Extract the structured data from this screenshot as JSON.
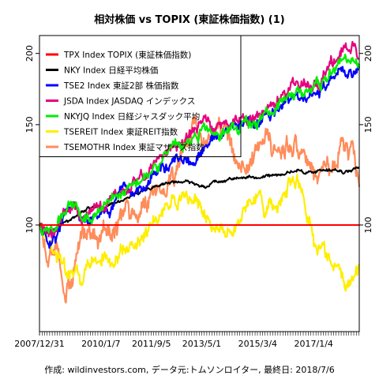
{
  "chart_data": {
    "type": "line",
    "title": "相対株価 vs TOPIX (東証株価指数) (1)",
    "caption": "作成: wildinvestors.com, データ元:トムソンロイター, 最終日: 2018/7/6",
    "xlabel": "",
    "ylabel": "",
    "x_tick_labels": [
      "2007/12/31",
      "2010/1/7",
      "2011/9/5",
      "2013/5/1",
      "2015/3/4",
      "2017/1/4"
    ],
    "x_tick_dates": [
      "2007-12-31",
      "2010-01-07",
      "2011-09-05",
      "2013-05-01",
      "2015-03-04",
      "2017-01-04"
    ],
    "x_range": [
      "2007-12-31",
      "2018-07-06"
    ],
    "y_scale": "log",
    "ylim": [
      65,
      215
    ],
    "y_ticks": [
      100,
      150,
      200
    ],
    "y_tick_labels": [
      "100",
      "150",
      "200"
    ],
    "grid": false,
    "legend_position": "top-left",
    "series": [
      {
        "name": "TPX Index TOPIX (東証株価指数)",
        "color": "#ff0000",
        "points": [
          [
            "2007-12-31",
            100
          ],
          [
            "2018-07-06",
            100
          ]
        ]
      },
      {
        "name": "NKY Index 日経平均株価",
        "color": "#000000",
        "points": [
          [
            "2007-12-31",
            100
          ],
          [
            "2008-04-01",
            97
          ],
          [
            "2008-08-01",
            99
          ],
          [
            "2008-11-01",
            101
          ],
          [
            "2009-03-01",
            104
          ],
          [
            "2009-06-01",
            106
          ],
          [
            "2009-10-01",
            108
          ],
          [
            "2010-02-01",
            107
          ],
          [
            "2010-06-01",
            109
          ],
          [
            "2010-10-01",
            111
          ],
          [
            "2011-02-01",
            113
          ],
          [
            "2011-06-01",
            114
          ],
          [
            "2011-10-01",
            116
          ],
          [
            "2012-02-01",
            118
          ],
          [
            "2012-06-01",
            119
          ],
          [
            "2012-10-01",
            119
          ],
          [
            "2013-02-01",
            118
          ],
          [
            "2013-06-01",
            117
          ],
          [
            "2013-10-01",
            119
          ],
          [
            "2014-02-01",
            120
          ],
          [
            "2014-06-01",
            121
          ],
          [
            "2014-10-01",
            121
          ],
          [
            "2015-02-01",
            121
          ],
          [
            "2015-06-01",
            122
          ],
          [
            "2015-10-01",
            122
          ],
          [
            "2016-02-01",
            123
          ],
          [
            "2016-06-01",
            125
          ],
          [
            "2016-10-01",
            124
          ],
          [
            "2017-02-01",
            124
          ],
          [
            "2017-06-01",
            124
          ],
          [
            "2017-10-01",
            125
          ],
          [
            "2018-01-01",
            124
          ],
          [
            "2018-04-01",
            125
          ],
          [
            "2018-07-06",
            127
          ]
        ]
      },
      {
        "name": "TSE2 Index 東証2部 株価指数",
        "color": "#0000ff",
        "points": [
          [
            "2007-12-31",
            100
          ],
          [
            "2008-04-01",
            94
          ],
          [
            "2008-08-01",
            97
          ],
          [
            "2008-11-01",
            104
          ],
          [
            "2009-03-01",
            108
          ],
          [
            "2009-06-01",
            100
          ],
          [
            "2009-10-01",
            102
          ],
          [
            "2010-02-01",
            104
          ],
          [
            "2010-06-01",
            108
          ],
          [
            "2010-10-01",
            112
          ],
          [
            "2011-02-01",
            113
          ],
          [
            "2011-06-01",
            118
          ],
          [
            "2011-10-01",
            124
          ],
          [
            "2012-02-01",
            126
          ],
          [
            "2012-06-01",
            128
          ],
          [
            "2012-10-01",
            130
          ],
          [
            "2013-02-01",
            127
          ],
          [
            "2013-06-01",
            135
          ],
          [
            "2013-10-01",
            141
          ],
          [
            "2014-02-01",
            144
          ],
          [
            "2014-06-01",
            149
          ],
          [
            "2014-10-01",
            151
          ],
          [
            "2015-02-01",
            149
          ],
          [
            "2015-06-01",
            153
          ],
          [
            "2015-10-01",
            158
          ],
          [
            "2016-02-01",
            163
          ],
          [
            "2016-06-01",
            168
          ],
          [
            "2016-10-01",
            166
          ],
          [
            "2017-02-01",
            170
          ],
          [
            "2017-06-01",
            175
          ],
          [
            "2017-10-01",
            181
          ],
          [
            "2018-01-01",
            186
          ],
          [
            "2018-04-01",
            184
          ],
          [
            "2018-07-06",
            190
          ]
        ]
      },
      {
        "name": "JSDA Index JASDAQ インデックス",
        "color": "#e6007e",
        "points": [
          [
            "2007-12-31",
            100
          ],
          [
            "2008-04-01",
            96
          ],
          [
            "2008-08-01",
            100
          ],
          [
            "2008-11-01",
            106
          ],
          [
            "2009-03-01",
            111
          ],
          [
            "2009-06-01",
            103
          ],
          [
            "2009-10-01",
            105
          ],
          [
            "2010-02-01",
            107
          ],
          [
            "2010-06-01",
            112
          ],
          [
            "2010-10-01",
            115
          ],
          [
            "2011-02-01",
            118
          ],
          [
            "2011-06-01",
            121
          ],
          [
            "2011-10-01",
            129
          ],
          [
            "2012-02-01",
            132
          ],
          [
            "2012-06-01",
            137
          ],
          [
            "2012-10-01",
            140
          ],
          [
            "2013-02-01",
            146
          ],
          [
            "2013-06-01",
            153
          ],
          [
            "2013-10-01",
            150
          ],
          [
            "2014-02-01",
            148
          ],
          [
            "2014-06-01",
            152
          ],
          [
            "2014-10-01",
            155
          ],
          [
            "2015-02-01",
            154
          ],
          [
            "2015-06-01",
            158
          ],
          [
            "2015-10-01",
            164
          ],
          [
            "2016-02-01",
            170
          ],
          [
            "2016-06-01",
            176
          ],
          [
            "2016-10-01",
            174
          ],
          [
            "2017-02-01",
            179
          ],
          [
            "2017-06-01",
            186
          ],
          [
            "2017-10-01",
            196
          ],
          [
            "2018-01-01",
            207
          ],
          [
            "2018-04-01",
            202
          ],
          [
            "2018-07-06",
            196
          ]
        ]
      },
      {
        "name": "NKYJQ Index 日経ジャスダック平均",
        "color": "#00ee00",
        "points": [
          [
            "2007-12-31",
            100
          ],
          [
            "2008-04-01",
            97
          ],
          [
            "2008-08-01",
            100
          ],
          [
            "2008-11-01",
            106
          ],
          [
            "2009-03-01",
            110
          ],
          [
            "2009-06-01",
            103
          ],
          [
            "2009-10-01",
            105
          ],
          [
            "2010-02-01",
            107
          ],
          [
            "2010-06-01",
            112
          ],
          [
            "2010-10-01",
            116
          ],
          [
            "2011-02-01",
            119
          ],
          [
            "2011-06-01",
            122
          ],
          [
            "2011-10-01",
            128
          ],
          [
            "2012-02-01",
            131
          ],
          [
            "2012-06-01",
            135
          ],
          [
            "2012-10-01",
            136
          ],
          [
            "2013-02-01",
            143
          ],
          [
            "2013-06-01",
            147
          ],
          [
            "2013-10-01",
            145
          ],
          [
            "2014-02-01",
            145
          ],
          [
            "2014-06-01",
            149
          ],
          [
            "2014-10-01",
            152
          ],
          [
            "2015-02-01",
            151
          ],
          [
            "2015-06-01",
            155
          ],
          [
            "2015-10-01",
            160
          ],
          [
            "2016-02-01",
            166
          ],
          [
            "2016-06-01",
            171
          ],
          [
            "2016-10-01",
            170
          ],
          [
            "2017-02-01",
            175
          ],
          [
            "2017-06-01",
            181
          ],
          [
            "2017-10-01",
            188
          ],
          [
            "2018-01-01",
            195
          ],
          [
            "2018-04-01",
            191
          ],
          [
            "2018-07-06",
            192
          ]
        ]
      },
      {
        "name": "TSEREIT Index 東証REIT指数",
        "color": "#ffee00",
        "points": [
          [
            "2007-12-31",
            100
          ],
          [
            "2008-04-01",
            93
          ],
          [
            "2008-08-01",
            88
          ],
          [
            "2008-11-01",
            82
          ],
          [
            "2009-03-01",
            84
          ],
          [
            "2009-06-01",
            80
          ],
          [
            "2009-10-01",
            86
          ],
          [
            "2010-02-01",
            90
          ],
          [
            "2010-06-01",
            85
          ],
          [
            "2010-10-01",
            88
          ],
          [
            "2011-02-01",
            93
          ],
          [
            "2011-06-01",
            96
          ],
          [
            "2011-10-01",
            100
          ],
          [
            "2012-02-01",
            105
          ],
          [
            "2012-06-01",
            108
          ],
          [
            "2012-10-01",
            111
          ],
          [
            "2013-02-01",
            112
          ],
          [
            "2013-06-01",
            105
          ],
          [
            "2013-10-01",
            98
          ],
          [
            "2014-02-01",
            97
          ],
          [
            "2014-06-01",
            100
          ],
          [
            "2014-10-01",
            105
          ],
          [
            "2015-02-01",
            112
          ],
          [
            "2015-06-01",
            107
          ],
          [
            "2015-10-01",
            108
          ],
          [
            "2016-02-01",
            115
          ],
          [
            "2016-06-01",
            122
          ],
          [
            "2016-10-01",
            108
          ],
          [
            "2017-02-01",
            92
          ],
          [
            "2017-06-01",
            88
          ],
          [
            "2017-10-01",
            84
          ],
          [
            "2018-01-01",
            78
          ],
          [
            "2018-04-01",
            80
          ],
          [
            "2018-07-06",
            86
          ]
        ]
      },
      {
        "name": "TSEMOTHR Index 東証マザーズ指数",
        "color": "#ff8c5a",
        "points": [
          [
            "2007-12-31",
            100
          ],
          [
            "2008-04-01",
            85
          ],
          [
            "2008-08-01",
            92
          ],
          [
            "2008-11-01",
            71
          ],
          [
            "2009-03-01",
            88
          ],
          [
            "2009-06-01",
            100
          ],
          [
            "2009-10-01",
            92
          ],
          [
            "2010-02-01",
            95
          ],
          [
            "2010-06-01",
            96
          ],
          [
            "2010-10-01",
            105
          ],
          [
            "2011-02-01",
            100
          ],
          [
            "2011-06-01",
            108
          ],
          [
            "2011-10-01",
            120
          ],
          [
            "2012-02-01",
            112
          ],
          [
            "2012-06-01",
            118
          ],
          [
            "2012-10-01",
            138
          ],
          [
            "2013-02-01",
            152
          ],
          [
            "2013-06-01",
            140
          ],
          [
            "2013-10-01",
            138
          ],
          [
            "2014-02-01",
            145
          ],
          [
            "2014-06-01",
            128
          ],
          [
            "2014-10-01",
            122
          ],
          [
            "2015-02-01",
            135
          ],
          [
            "2015-06-01",
            145
          ],
          [
            "2015-10-01",
            128
          ],
          [
            "2016-02-01",
            140
          ],
          [
            "2016-06-01",
            140
          ],
          [
            "2016-10-01",
            128
          ],
          [
            "2017-02-01",
            120
          ],
          [
            "2017-06-01",
            126
          ],
          [
            "2017-10-01",
            130
          ],
          [
            "2018-01-01",
            135
          ],
          [
            "2018-04-01",
            132
          ],
          [
            "2018-07-06",
            118
          ]
        ]
      }
    ]
  }
}
